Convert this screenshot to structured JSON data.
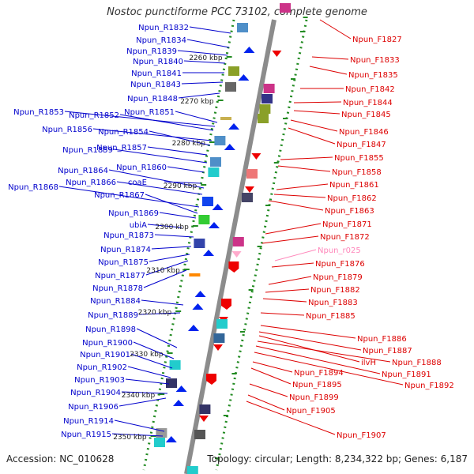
{
  "title": "Nostoc punctiforme PCC 73102, complete genome",
  "accession": "Accession: NC_010628",
  "summary": "Topology: circular; Length: 8,234,322 bp; Genes: 6,187",
  "colors": {
    "reverse_label": "#0000cc",
    "forward_label": "#dd0000",
    "rna_label": "#ff88bb",
    "backbone": "#8c8c8c",
    "ruler_dots": "#228b22"
  },
  "ruler_ticks": [
    "2260 kbp",
    "2270 kbp",
    "2280 kbp",
    "2290 kbp",
    "2300 kbp",
    "2310 kbp",
    "2320 kbp",
    "2330 kbp",
    "2340 kbp",
    "2350 kbp"
  ],
  "reverse_genes": [
    "Npun_R1832",
    "Npun_R1834",
    "Npun_R1839",
    "Npun_R1840",
    "Npun_R1841",
    "Npun_R1843",
    "Npun_R1848",
    "Npun_R1851",
    "Npun_R1853",
    "Npun_R1852",
    "Npun_R1856",
    "Npun_R1854",
    "Npun_R1857",
    "Npun_R1859",
    "Npun_R1860",
    "Npun_R1864",
    "Npun_R1866",
    "coaE",
    "Npun_R1868",
    "Npun_R1867",
    "Npun_R1869",
    "ubiA",
    "Npun_R1873",
    "Npun_R1874",
    "Npun_R1875",
    "Npun_R1877",
    "Npun_R1878",
    "Npun_R1884",
    "Npun_R1889",
    "Npun_R1898",
    "Npun_R1900",
    "Npun_R1901",
    "Npun_R1902",
    "Npun_R1903",
    "Npun_R1904",
    "Npun_R1906",
    "Npun_R1914",
    "Npun_R1915"
  ],
  "forward_genes": [
    "Npun_F1827",
    "Npun_F1833",
    "Npun_F1835",
    "Npun_F1842",
    "Npun_F1844",
    "Npun_F1845",
    "Npun_F1846",
    "Npun_F1847",
    "Npun_F1855",
    "Npun_F1858",
    "Npun_F1861",
    "Npun_F1862",
    "Npun_F1863",
    "Npun_F1871",
    "Npun_F1872",
    "Npun_r025",
    "Npun_F1876",
    "Npun_F1879",
    "Npun_F1882",
    "Npun_F1883",
    "Npun_F1885",
    "Npun_F1886",
    "Npun_F1887",
    "ilvH",
    "Npun_F1888",
    "Npun_F1891",
    "Npun_F1892",
    "Npun_F1894",
    "Npun_F1895",
    "Npun_F1899",
    "Npun_F1905",
    "Npun_F1907"
  ]
}
